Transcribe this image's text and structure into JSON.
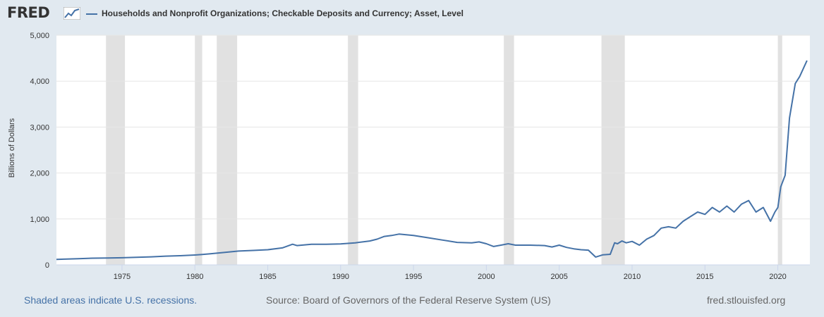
{
  "header": {
    "logo_text": "FRED",
    "legend_label": "Households and Nonprofit Organizations; Checkable Deposits and Currency; Asset, Level",
    "series_color": "#4572a7"
  },
  "footer": {
    "recession_note": "Shaded areas indicate U.S. recessions.",
    "source": "Source: Board of Governors of the Federal Reserve System (US)",
    "site": "fred.stlouisfed.org"
  },
  "chart_data": {
    "type": "line",
    "title": "",
    "xlabel": "",
    "ylabel": "Billions of Dollars",
    "xlim": [
      1970.5,
      2022.2
    ],
    "ylim": [
      0,
      5000
    ],
    "x_ticks": [
      1975,
      1980,
      1985,
      1990,
      1995,
      2000,
      2005,
      2010,
      2015,
      2020
    ],
    "y_ticks": [
      0,
      1000,
      2000,
      3000,
      4000,
      5000
    ],
    "y_tick_labels": [
      "0",
      "1,000",
      "2,000",
      "3,000",
      "4,000",
      "5,000"
    ],
    "grid": true,
    "recessions": [
      [
        1973.9,
        1975.2
      ],
      [
        1980.0,
        1980.5
      ],
      [
        1981.5,
        1982.9
      ],
      [
        1990.5,
        1991.2
      ],
      [
        2001.2,
        2001.9
      ],
      [
        2007.9,
        2009.5
      ],
      [
        2020.0,
        2020.3
      ]
    ],
    "series": [
      {
        "name": "Households and Nonprofit Organizations; Checkable Deposits and Currency; Asset, Level",
        "points": [
          [
            1970.5,
            120
          ],
          [
            1971.0,
            125
          ],
          [
            1972.0,
            135
          ],
          [
            1973.0,
            145
          ],
          [
            1974.0,
            150
          ],
          [
            1975.0,
            155
          ],
          [
            1976.0,
            165
          ],
          [
            1977.0,
            175
          ],
          [
            1978.0,
            190
          ],
          [
            1979.0,
            200
          ],
          [
            1980.0,
            215
          ],
          [
            1980.5,
            225
          ],
          [
            1981.0,
            240
          ],
          [
            1982.0,
            270
          ],
          [
            1983.0,
            300
          ],
          [
            1984.0,
            315
          ],
          [
            1985.0,
            330
          ],
          [
            1986.0,
            370
          ],
          [
            1986.7,
            450
          ],
          [
            1987.0,
            420
          ],
          [
            1988.0,
            450
          ],
          [
            1989.0,
            450
          ],
          [
            1990.0,
            455
          ],
          [
            1991.0,
            480
          ],
          [
            1992.0,
            520
          ],
          [
            1992.5,
            560
          ],
          [
            1993.0,
            620
          ],
          [
            1993.5,
            640
          ],
          [
            1994.0,
            670
          ],
          [
            1995.0,
            640
          ],
          [
            1996.0,
            590
          ],
          [
            1997.0,
            540
          ],
          [
            1998.0,
            490
          ],
          [
            1999.0,
            480
          ],
          [
            1999.5,
            500
          ],
          [
            2000.0,
            460
          ],
          [
            2000.5,
            400
          ],
          [
            2001.0,
            430
          ],
          [
            2001.5,
            460
          ],
          [
            2002.0,
            430
          ],
          [
            2003.0,
            430
          ],
          [
            2004.0,
            420
          ],
          [
            2004.5,
            390
          ],
          [
            2005.0,
            430
          ],
          [
            2005.5,
            380
          ],
          [
            2006.0,
            350
          ],
          [
            2006.5,
            330
          ],
          [
            2007.0,
            320
          ],
          [
            2007.5,
            170
          ],
          [
            2008.0,
            220
          ],
          [
            2008.5,
            230
          ],
          [
            2008.8,
            480
          ],
          [
            2009.0,
            460
          ],
          [
            2009.3,
            520
          ],
          [
            2009.6,
            480
          ],
          [
            2010.0,
            510
          ],
          [
            2010.5,
            430
          ],
          [
            2011.0,
            560
          ],
          [
            2011.5,
            640
          ],
          [
            2012.0,
            800
          ],
          [
            2012.5,
            830
          ],
          [
            2013.0,
            800
          ],
          [
            2013.5,
            950
          ],
          [
            2014.0,
            1050
          ],
          [
            2014.5,
            1150
          ],
          [
            2015.0,
            1100
          ],
          [
            2015.5,
            1250
          ],
          [
            2016.0,
            1150
          ],
          [
            2016.5,
            1280
          ],
          [
            2017.0,
            1150
          ],
          [
            2017.5,
            1320
          ],
          [
            2018.0,
            1400
          ],
          [
            2018.5,
            1150
          ],
          [
            2019.0,
            1250
          ],
          [
            2019.5,
            950
          ],
          [
            2019.8,
            1150
          ],
          [
            2020.0,
            1250
          ],
          [
            2020.2,
            1700
          ],
          [
            2020.5,
            1950
          ],
          [
            2020.8,
            3200
          ],
          [
            2021.2,
            3950
          ],
          [
            2021.5,
            4100
          ],
          [
            2022.0,
            4450
          ]
        ]
      }
    ]
  }
}
